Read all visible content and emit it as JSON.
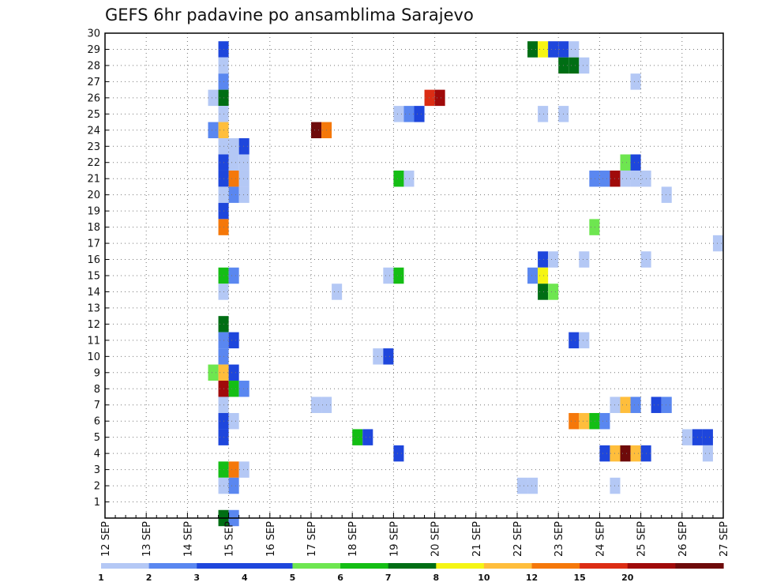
{
  "chart_data": {
    "type": "heatmap",
    "title": "GEFS 6hr padavine po ansamblima Sarajevo",
    "x_start": "12 SEP",
    "x_end": "27 SEP",
    "x_tick_labels": [
      "12 SEP",
      "13 SEP",
      "14 SEP",
      "15 SEP",
      "16 SEP",
      "17 SEP",
      "18 SEP",
      "19 SEP",
      "20 SEP",
      "21 SEP",
      "22 SEP",
      "23 SEP",
      "24 SEP",
      "25 SEP",
      "26 SEP",
      "27 SEP"
    ],
    "y_tick_labels": [
      "1",
      "2",
      "3",
      "4",
      "5",
      "6",
      "7",
      "8",
      "9",
      "10",
      "11",
      "12",
      "13",
      "14",
      "15",
      "16",
      "17",
      "18",
      "19",
      "20",
      "21",
      "22",
      "23",
      "24",
      "25",
      "26",
      "27",
      "28",
      "29",
      "30"
    ],
    "ylim": [
      0,
      30
    ],
    "grid": true,
    "legend": "colorbar-bottom",
    "colorbar": {
      "labels": [
        "1",
        "2",
        "3",
        "4",
        "5",
        "6",
        "7",
        "8",
        "10",
        "12",
        "15",
        "20"
      ],
      "colors": [
        "#b4c8f5",
        "#5a87f0",
        "#1e46dc",
        "#1e46dc",
        "#6ee650",
        "#14be14",
        "#006e14",
        "#f5f514",
        "#ffbe3c",
        "#f5780a",
        "#dc2d14",
        "#a00a0a",
        "#6e0a0a"
      ]
    },
    "cells_note": "each cell: d = day offset from 12 SEP 00z, step 0.25 = 6 h; m = ensemble member; c = colour class index",
    "cells": [
      {
        "d": 2.75,
        "m": 29,
        "c": 2
      },
      {
        "d": 2.75,
        "m": 28,
        "c": 0
      },
      {
        "d": 2.75,
        "m": 27,
        "c": 1
      },
      {
        "d": 2.5,
        "m": 26,
        "c": 0
      },
      {
        "d": 2.75,
        "m": 26,
        "c": 6
      },
      {
        "d": 2.75,
        "m": 25,
        "c": 0
      },
      {
        "d": 2.5,
        "m": 24,
        "c": 1
      },
      {
        "d": 2.75,
        "m": 24,
        "c": 8
      },
      {
        "d": 2.75,
        "m": 23,
        "c": 0
      },
      {
        "d": 3.0,
        "m": 23,
        "c": 0
      },
      {
        "d": 3.25,
        "m": 23,
        "c": 2
      },
      {
        "d": 2.75,
        "m": 22,
        "c": 2
      },
      {
        "d": 3.0,
        "m": 22,
        "c": 0
      },
      {
        "d": 3.25,
        "m": 22,
        "c": 0
      },
      {
        "d": 2.75,
        "m": 21,
        "c": 2
      },
      {
        "d": 3.0,
        "m": 21,
        "c": 9
      },
      {
        "d": 3.25,
        "m": 21,
        "c": 0
      },
      {
        "d": 2.75,
        "m": 20,
        "c": 0
      },
      {
        "d": 3.0,
        "m": 20,
        "c": 1
      },
      {
        "d": 3.25,
        "m": 20,
        "c": 0
      },
      {
        "d": 2.75,
        "m": 19,
        "c": 2
      },
      {
        "d": 2.75,
        "m": 18,
        "c": 9
      },
      {
        "d": 2.75,
        "m": 15,
        "c": 5
      },
      {
        "d": 3.0,
        "m": 15,
        "c": 1
      },
      {
        "d": 2.75,
        "m": 14,
        "c": 0
      },
      {
        "d": 2.75,
        "m": 12,
        "c": 6
      },
      {
        "d": 2.75,
        "m": 11,
        "c": 1
      },
      {
        "d": 3.0,
        "m": 11,
        "c": 2
      },
      {
        "d": 2.75,
        "m": 10,
        "c": 1
      },
      {
        "d": 2.5,
        "m": 9,
        "c": 4
      },
      {
        "d": 2.75,
        "m": 9,
        "c": 8
      },
      {
        "d": 3.0,
        "m": 9,
        "c": 2
      },
      {
        "d": 2.75,
        "m": 8,
        "c": 11
      },
      {
        "d": 3.0,
        "m": 8,
        "c": 5
      },
      {
        "d": 3.25,
        "m": 8,
        "c": 1
      },
      {
        "d": 2.75,
        "m": 7,
        "c": 0
      },
      {
        "d": 2.75,
        "m": 6,
        "c": 2
      },
      {
        "d": 3.0,
        "m": 6,
        "c": 0
      },
      {
        "d": 2.75,
        "m": 5,
        "c": 2
      },
      {
        "d": 2.75,
        "m": 3,
        "c": 5
      },
      {
        "d": 3.0,
        "m": 3,
        "c": 9
      },
      {
        "d": 3.25,
        "m": 3,
        "c": 0
      },
      {
        "d": 2.75,
        "m": 2,
        "c": 0
      },
      {
        "d": 3.0,
        "m": 2,
        "c": 1
      },
      {
        "d": 2.75,
        "m": 0,
        "c": 6
      },
      {
        "d": 3.0,
        "m": 0,
        "c": 1
      },
      {
        "d": 5.0,
        "m": 24,
        "c": 12
      },
      {
        "d": 5.25,
        "m": 24,
        "c": 9
      },
      {
        "d": 5.5,
        "m": 14,
        "c": 0
      },
      {
        "d": 5.0,
        "m": 7,
        "c": 0
      },
      {
        "d": 5.25,
        "m": 7,
        "c": 0
      },
      {
        "d": 6.0,
        "m": 5,
        "c": 5
      },
      {
        "d": 6.25,
        "m": 5,
        "c": 2
      },
      {
        "d": 6.5,
        "m": 10,
        "c": 0
      },
      {
        "d": 6.75,
        "m": 10,
        "c": 2
      },
      {
        "d": 6.75,
        "m": 15,
        "c": 0
      },
      {
        "d": 7.0,
        "m": 15,
        "c": 5
      },
      {
        "d": 7.0,
        "m": 21,
        "c": 5
      },
      {
        "d": 7.25,
        "m": 21,
        "c": 0
      },
      {
        "d": 7.0,
        "m": 25,
        "c": 0
      },
      {
        "d": 7.25,
        "m": 25,
        "c": 1
      },
      {
        "d": 7.5,
        "m": 25,
        "c": 2
      },
      {
        "d": 7.0,
        "m": 4,
        "c": 2
      },
      {
        "d": 7.75,
        "m": 26,
        "c": 10
      },
      {
        "d": 8.0,
        "m": 26,
        "c": 11
      },
      {
        "d": 10.25,
        "m": 29,
        "c": 6
      },
      {
        "d": 10.5,
        "m": 29,
        "c": 7
      },
      {
        "d": 10.75,
        "m": 29,
        "c": 2
      },
      {
        "d": 11.0,
        "m": 29,
        "c": 2
      },
      {
        "d": 11.25,
        "m": 29,
        "c": 0
      },
      {
        "d": 11.0,
        "m": 28,
        "c": 6
      },
      {
        "d": 11.25,
        "m": 28,
        "c": 6
      },
      {
        "d": 11.5,
        "m": 28,
        "c": 0
      },
      {
        "d": 12.75,
        "m": 27,
        "c": 0
      },
      {
        "d": 10.5,
        "m": 25,
        "c": 0
      },
      {
        "d": 11.0,
        "m": 25,
        "c": 0
      },
      {
        "d": 12.5,
        "m": 22,
        "c": 4
      },
      {
        "d": 12.75,
        "m": 22,
        "c": 2
      },
      {
        "d": 11.75,
        "m": 21,
        "c": 1
      },
      {
        "d": 12.0,
        "m": 21,
        "c": 1
      },
      {
        "d": 12.25,
        "m": 21,
        "c": 11
      },
      {
        "d": 12.5,
        "m": 21,
        "c": 0
      },
      {
        "d": 12.75,
        "m": 21,
        "c": 0
      },
      {
        "d": 13.0,
        "m": 21,
        "c": 0
      },
      {
        "d": 13.5,
        "m": 20,
        "c": 0
      },
      {
        "d": 11.75,
        "m": 18,
        "c": 4
      },
      {
        "d": 14.75,
        "m": 17,
        "c": 0
      },
      {
        "d": 10.5,
        "m": 16,
        "c": 2
      },
      {
        "d": 10.75,
        "m": 16,
        "c": 0
      },
      {
        "d": 11.5,
        "m": 16,
        "c": 0
      },
      {
        "d": 13.0,
        "m": 16,
        "c": 0
      },
      {
        "d": 10.25,
        "m": 15,
        "c": 1
      },
      {
        "d": 10.5,
        "m": 15,
        "c": 7
      },
      {
        "d": 10.5,
        "m": 14,
        "c": 6
      },
      {
        "d": 10.75,
        "m": 14,
        "c": 4
      },
      {
        "d": 11.25,
        "m": 11,
        "c": 2
      },
      {
        "d": 11.5,
        "m": 11,
        "c": 0
      },
      {
        "d": 12.25,
        "m": 7,
        "c": 0
      },
      {
        "d": 12.5,
        "m": 7,
        "c": 8
      },
      {
        "d": 12.75,
        "m": 7,
        "c": 1
      },
      {
        "d": 13.25,
        "m": 7,
        "c": 2
      },
      {
        "d": 13.5,
        "m": 7,
        "c": 1
      },
      {
        "d": 11.25,
        "m": 6,
        "c": 9
      },
      {
        "d": 11.5,
        "m": 6,
        "c": 8
      },
      {
        "d": 11.75,
        "m": 6,
        "c": 5
      },
      {
        "d": 12.0,
        "m": 6,
        "c": 1
      },
      {
        "d": 14.0,
        "m": 5,
        "c": 0
      },
      {
        "d": 14.25,
        "m": 5,
        "c": 2
      },
      {
        "d": 14.5,
        "m": 5,
        "c": 2
      },
      {
        "d": 12.0,
        "m": 4,
        "c": 2
      },
      {
        "d": 12.25,
        "m": 4,
        "c": 8
      },
      {
        "d": 12.5,
        "m": 4,
        "c": 12
      },
      {
        "d": 12.75,
        "m": 4,
        "c": 8
      },
      {
        "d": 13.0,
        "m": 4,
        "c": 2
      },
      {
        "d": 14.5,
        "m": 4,
        "c": 0
      },
      {
        "d": 10.0,
        "m": 2,
        "c": 0
      },
      {
        "d": 10.25,
        "m": 2,
        "c": 0
      },
      {
        "d": 12.25,
        "m": 2,
        "c": 0
      }
    ]
  }
}
